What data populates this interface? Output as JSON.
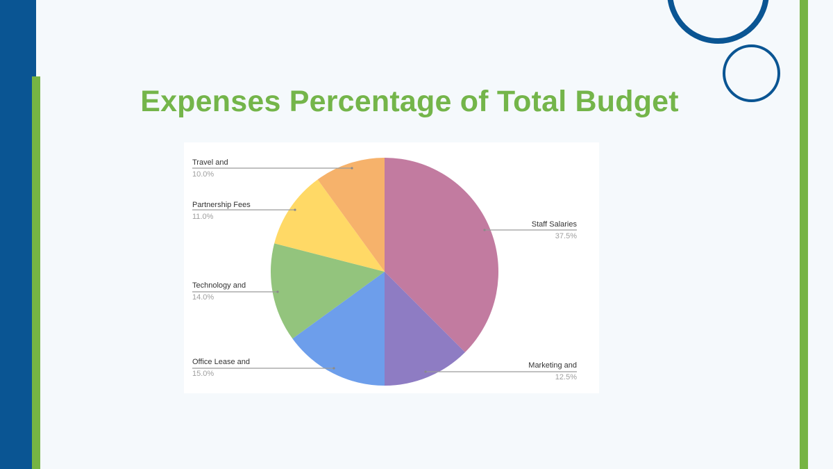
{
  "slide": {
    "title": "Expenses Percentage of Total Budget",
    "colors": {
      "background": "#f5f9fc",
      "left_bar": "#0a5593",
      "accent_green": "#76b443",
      "circle_stroke": "#0a5593",
      "title": "#74b54a"
    }
  },
  "chart_data": {
    "type": "pie",
    "title": "Expenses Percentage of Total Budget",
    "start_angle": "12 o'clock, clockwise",
    "categories": [
      "Staff Salaries",
      "Marketing and",
      "Office Lease and",
      "Technology and",
      "Partnership Fees",
      "Travel and"
    ],
    "values": [
      37.5,
      12.5,
      15.0,
      14.0,
      11.0,
      10.0
    ],
    "value_labels": [
      "37.5%",
      "12.5%",
      "15.0%",
      "14.0%",
      "11.0%",
      "10.0%"
    ],
    "colors": [
      "#c27ba0",
      "#8e7cc3",
      "#6d9eeb",
      "#93c47d",
      "#ffd966",
      "#f6b26b"
    ],
    "legend": "leader-line labels beside slices",
    "grid": false
  },
  "labels": {
    "staff": {
      "name": "Staff Salaries",
      "pct": "37.5%"
    },
    "marketing": {
      "name": "Marketing and",
      "pct": "12.5%"
    },
    "office": {
      "name": "Office Lease and",
      "pct": "15.0%"
    },
    "technology": {
      "name": "Technology and",
      "pct": "14.0%"
    },
    "partnership": {
      "name": "Partnership Fees",
      "pct": "11.0%"
    },
    "travel": {
      "name": "Travel and",
      "pct": "10.0%"
    }
  }
}
